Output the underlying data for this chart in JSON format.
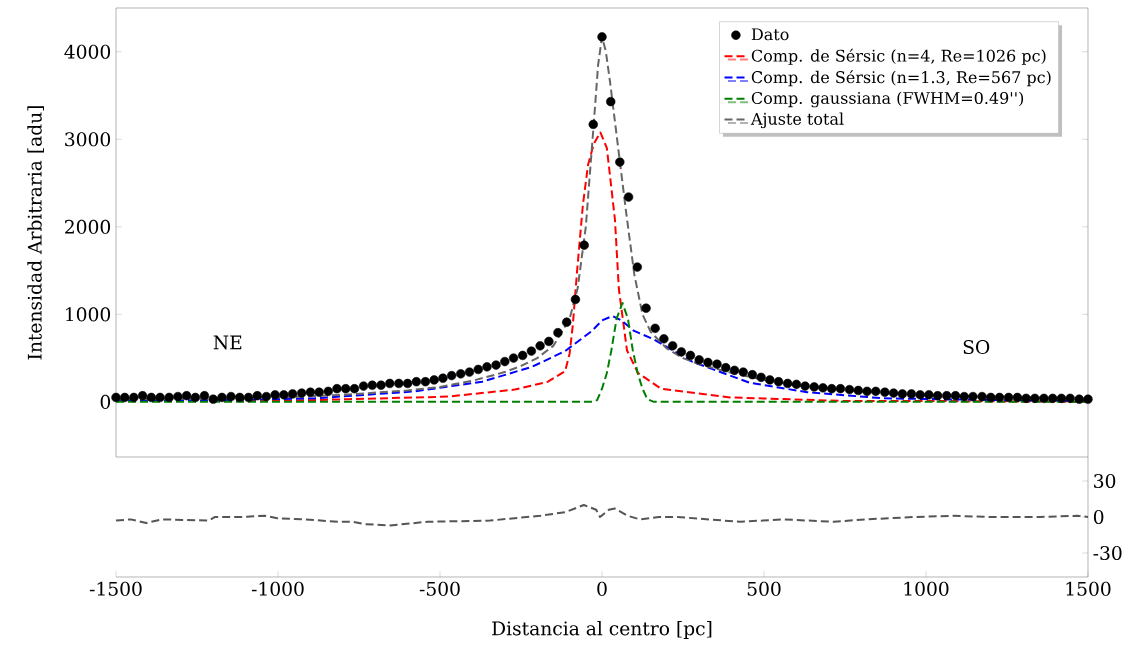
{
  "chart_data": [
    {
      "type": "line",
      "ylabel": "Intensidad Arbitraria [adu]",
      "xlim": [
        -1500,
        1500
      ],
      "ylim": [
        -630,
        4500
      ],
      "yticks": [
        0,
        1000,
        2000,
        3000,
        4000
      ],
      "tick_labels": "y",
      "grid": false,
      "legend": "top right",
      "line_style": "dashed",
      "annotations": [
        "NE",
        "SO"
      ],
      "series": [
        {
          "name": "Dato",
          "type": "scatter",
          "marker": "circle",
          "color": "#000000",
          "x": [
            -1500,
            -1473,
            -1445,
            -1418,
            -1391,
            -1364,
            -1336,
            -1309,
            -1282,
            -1255,
            -1227,
            -1200,
            -1173,
            -1145,
            -1118,
            -1091,
            -1064,
            -1036,
            -1009,
            -982,
            -955,
            -927,
            -900,
            -873,
            -845,
            -818,
            -791,
            -764,
            -736,
            -709,
            -682,
            -655,
            -627,
            -600,
            -573,
            -545,
            -518,
            -491,
            -464,
            -436,
            -409,
            -382,
            -355,
            -327,
            -300,
            -273,
            -245,
            -218,
            -191,
            -164,
            -136,
            -109,
            -82,
            -55,
            -27,
            0,
            27,
            55,
            82,
            109,
            136,
            164,
            191,
            218,
            245,
            273,
            300,
            327,
            355,
            382,
            409,
            436,
            464,
            491,
            518,
            545,
            573,
            600,
            627,
            655,
            682,
            709,
            736,
            764,
            791,
            818,
            845,
            873,
            900,
            927,
            955,
            982,
            1009,
            1036,
            1064,
            1091,
            1118,
            1145,
            1173,
            1200,
            1227,
            1255,
            1282,
            1309,
            1336,
            1364,
            1391,
            1418,
            1445,
            1473,
            1500
          ],
          "values": [
            50,
            50,
            50,
            70,
            50,
            50,
            50,
            60,
            70,
            50,
            70,
            30,
            50,
            60,
            50,
            50,
            70,
            60,
            80,
            80,
            90,
            100,
            110,
            110,
            120,
            150,
            150,
            150,
            180,
            190,
            190,
            210,
            210,
            210,
            230,
            230,
            250,
            270,
            300,
            320,
            340,
            370,
            400,
            420,
            460,
            500,
            530,
            580,
            640,
            690,
            790,
            910,
            1170,
            1790,
            3170,
            4170,
            3430,
            2740,
            2340,
            1540,
            1070,
            840,
            720,
            640,
            570,
            530,
            480,
            450,
            430,
            390,
            360,
            340,
            310,
            280,
            250,
            230,
            210,
            200,
            180,
            170,
            160,
            150,
            150,
            140,
            130,
            120,
            120,
            110,
            100,
            90,
            90,
            80,
            80,
            70,
            70,
            70,
            60,
            60,
            60,
            50,
            50,
            50,
            50,
            40,
            40,
            40,
            40,
            40,
            40,
            30,
            30
          ]
        },
        {
          "name": "Comp. de Sérsic (n=4, Re=1026 pc)",
          "color": "#ff0000",
          "x": [
            -1500,
            -1000,
            -784,
            -475,
            -269,
            -167,
            -114,
            -100,
            -90,
            -77,
            -59,
            -43,
            -25,
            -5,
            15,
            40,
            52,
            77,
            111,
            182,
            395,
            750,
            1000,
            1500
          ],
          "values": [
            10,
            10,
            30,
            60,
            140,
            230,
            350,
            550,
            880,
            1490,
            2250,
            2710,
            2950,
            3080,
            2900,
            2080,
            1290,
            590,
            330,
            150,
            50,
            10,
            10,
            0
          ]
        },
        {
          "name": "Comp. de Sérsic (n=1.3, Re=567 pc)",
          "color": "#0000ff",
          "x": [
            -1500,
            -1194,
            -886,
            -577,
            -370,
            -216,
            -114,
            -31,
            0,
            32,
            60,
            99,
            157,
            278,
            454,
            633,
            870,
            1225,
            1500
          ],
          "values": [
            10,
            20,
            40,
            120,
            230,
            400,
            580,
            810,
            930,
            980,
            930,
            810,
            720,
            460,
            220,
            110,
            40,
            20,
            10
          ]
        },
        {
          "name": "Comp. gaussiana (FWHM=0.49'')",
          "color": "#008000",
          "x": [
            -1500,
            -30,
            -15,
            0,
            15,
            29,
            45,
            63,
            80,
            95,
            110,
            125,
            140,
            160,
            1500
          ],
          "values": [
            0,
            0,
            20,
            150,
            330,
            590,
            950,
            1130,
            950,
            590,
            330,
            150,
            30,
            0,
            0
          ]
        },
        {
          "name": "Ajuste total",
          "color": "#666666",
          "x": [
            -1500,
            -1200,
            -1000,
            -800,
            -600,
            -500,
            -400,
            -300,
            -250,
            -200,
            -150,
            -100,
            -75,
            -50,
            -25,
            -12,
            0,
            12,
            25,
            50,
            75,
            100,
            125,
            150,
            200,
            250,
            300,
            400,
            500,
            600,
            800,
            1000,
            1200,
            1500
          ],
          "values": [
            30,
            40,
            50,
            80,
            130,
            170,
            240,
            340,
            410,
            500,
            640,
            950,
            1300,
            2000,
            3200,
            3850,
            4170,
            4000,
            3650,
            2900,
            2150,
            1450,
            1000,
            800,
            610,
            500,
            430,
            330,
            250,
            190,
            120,
            80,
            60,
            40
          ]
        }
      ]
    },
    {
      "type": "line",
      "xlabel": "Distancia al centro [pc]",
      "xlim": [
        -1500,
        1500
      ],
      "xticks": [
        -1500,
        -1000,
        -500,
        0,
        500,
        1000,
        1500
      ],
      "y2lim": [
        -50,
        50
      ],
      "y2ticks": [
        -30,
        0,
        30
      ],
      "grid": false,
      "legend": false,
      "line_style": "dashed",
      "series": [
        {
          "axis": "y2",
          "color": "#555555",
          "x": [
            -1500,
            -1455,
            -1407,
            -1358,
            -1214,
            -1194,
            -1117,
            -1040,
            -1002,
            -924,
            -809,
            -770,
            -731,
            -654,
            -539,
            -346,
            -191,
            -114,
            -56,
            -18,
            -6,
            21,
            40,
            79,
            117,
            175,
            233,
            426,
            561,
            715,
            812,
            966,
            1082,
            1198,
            1294,
            1352,
            1468,
            1500
          ],
          "values": [
            -3,
            -2,
            -5,
            -2,
            -3,
            0,
            0,
            1,
            -1,
            -2,
            -4,
            -4,
            -6,
            -7,
            -4,
            -3,
            1,
            4,
            10,
            6,
            0,
            6,
            7,
            1,
            -2,
            0,
            0,
            -4,
            -2,
            -4,
            -2,
            0,
            1,
            0,
            0,
            0,
            1,
            0
          ]
        }
      ]
    }
  ]
}
